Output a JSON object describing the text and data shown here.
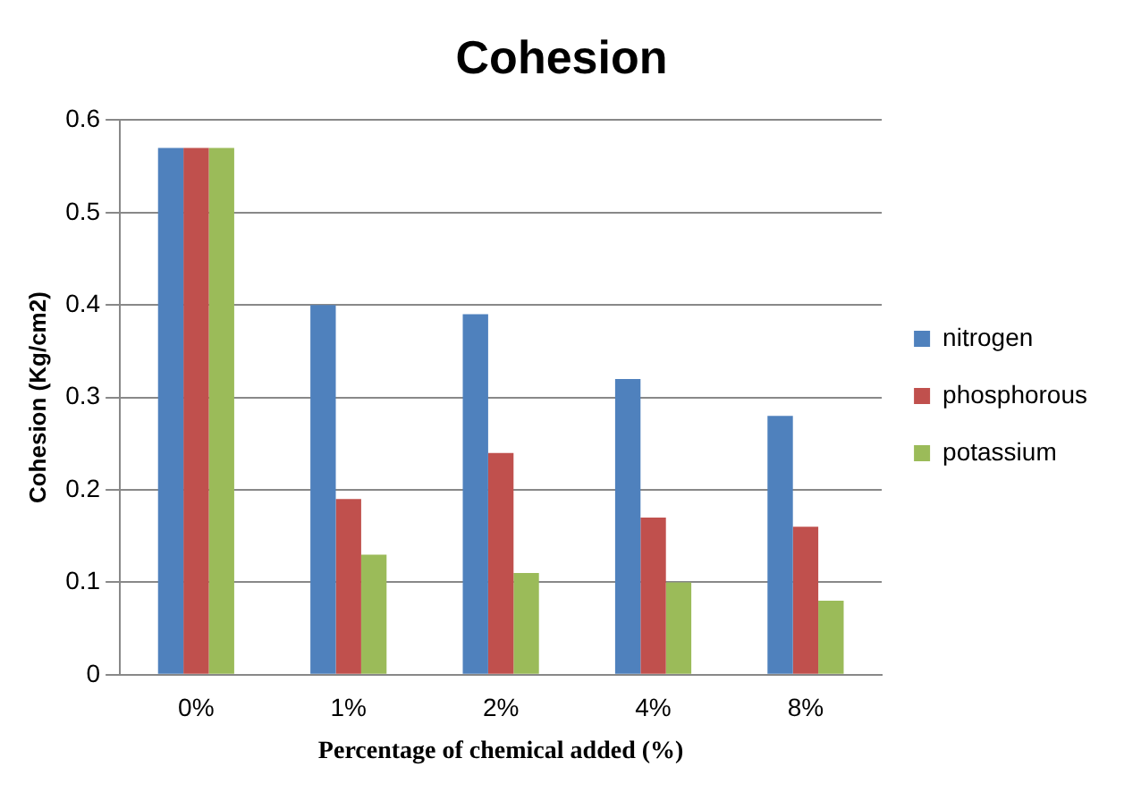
{
  "chart_data": {
    "type": "bar",
    "title": "Cohesion",
    "xlabel": "Percentage of chemical added (%)",
    "ylabel": "Cohesion (Kg/cm2)",
    "categories": [
      "0%",
      "1%",
      "2%",
      "4%",
      "8%"
    ],
    "series": [
      {
        "name": "nitrogen",
        "color": "#4f81bd",
        "values": [
          0.57,
          0.4,
          0.39,
          0.32,
          0.28
        ]
      },
      {
        "name": "phosphorous",
        "color": "#c0504d",
        "values": [
          0.57,
          0.19,
          0.24,
          0.17,
          0.16
        ]
      },
      {
        "name": "potassium",
        "color": "#9bbb59",
        "values": [
          0.57,
          0.13,
          0.11,
          0.1,
          0.08
        ]
      }
    ],
    "ylim": [
      0,
      0.6
    ],
    "yticks": [
      0,
      0.1,
      0.2,
      0.3,
      0.4,
      0.5,
      0.6
    ],
    "grid": "y",
    "legend": "right"
  }
}
